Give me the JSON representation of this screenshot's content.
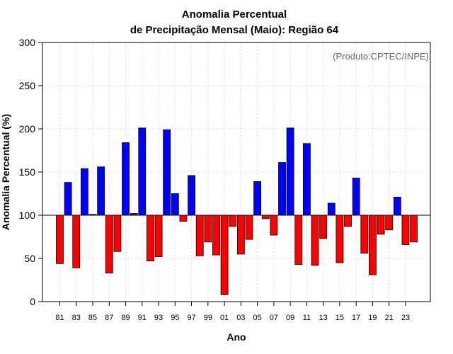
{
  "chart_data": {
    "type": "bar",
    "title_line1": "Anomalia Percentual",
    "title_line2": "de Precipitação Mensal (Maio): Região 64",
    "xlabel": "Ano",
    "ylabel": "Anomalia Percentual (%)",
    "annotation": "(Produto:CPTEC/INPE)",
    "baseline": 100,
    "ylim": [
      0,
      300
    ],
    "yticks": [
      0,
      50,
      100,
      150,
      200,
      250,
      300
    ],
    "xtick_labels": [
      "81",
      "83",
      "85",
      "87",
      "89",
      "91",
      "93",
      "95",
      "97",
      "99",
      "01",
      "03",
      "05",
      "07",
      "09",
      "11",
      "13",
      "15",
      "17",
      "19",
      "21",
      "23"
    ],
    "categories": [
      "1981",
      "1982",
      "1983",
      "1984",
      "1985",
      "1986",
      "1987",
      "1988",
      "1989",
      "1990",
      "1991",
      "1992",
      "1993",
      "1994",
      "1995",
      "1996",
      "1997",
      "1998",
      "1999",
      "2000",
      "2001",
      "2002",
      "2003",
      "2004",
      "2005",
      "2006",
      "2007",
      "2008",
      "2009",
      "2010",
      "2011",
      "2012",
      "2013",
      "2014",
      "2015",
      "2016",
      "2017",
      "2018",
      "2019",
      "2020",
      "2021",
      "2022",
      "2023",
      "2024"
    ],
    "values": [
      44,
      138,
      39,
      154,
      101,
      156,
      33,
      58,
      184,
      102,
      201,
      47,
      52,
      199,
      125,
      93,
      146,
      53,
      69,
      54,
      8,
      87,
      55,
      72,
      139,
      96,
      77,
      161,
      201,
      43,
      183,
      42,
      73,
      114,
      45,
      87,
      143,
      56,
      31,
      78,
      83,
      121,
      66,
      69
    ],
    "colors": {
      "above": "#0000ff",
      "below": "#ff0000",
      "grid": "#d9d9d9",
      "frame": "#000000"
    },
    "grid": true
  }
}
